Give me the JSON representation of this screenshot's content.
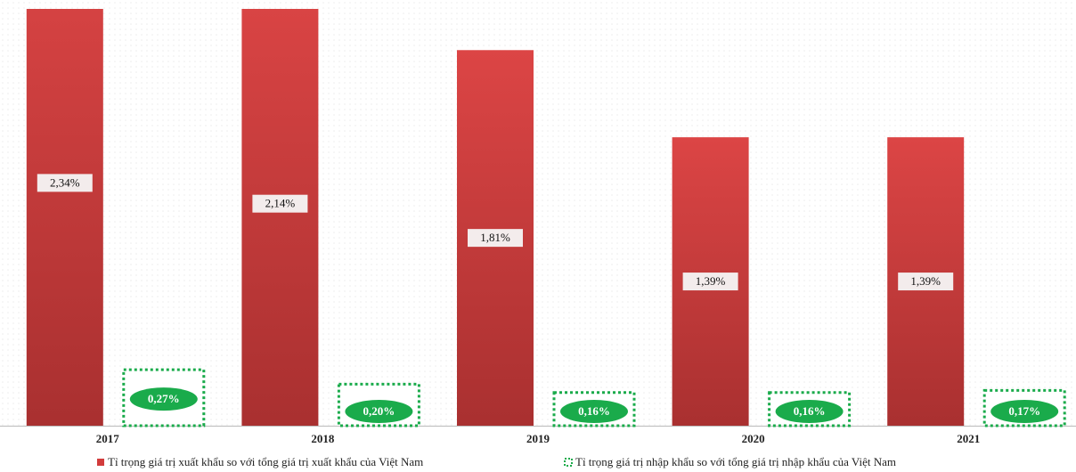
{
  "chart_data": {
    "type": "bar",
    "categories": [
      "2017",
      "2018",
      "2019",
      "2020",
      "2021"
    ],
    "series": [
      {
        "name": "Tỉ trọng giá trị xuất khẩu so với tổng giá trị xuất khẩu của Việt Nam",
        "color": "#d23c3c",
        "values": [
          2.34,
          2.14,
          1.81,
          1.39,
          1.39
        ],
        "value_labels": [
          "2,34%",
          "2,14%",
          "1,81%",
          "1,39%",
          "1,39%"
        ]
      },
      {
        "name": "Tỉ trọng giá trị nhập khẩu so với tổng giá trị nhập khẩu của Việt Nam",
        "color": "#1aab4b",
        "values": [
          0.27,
          0.2,
          0.16,
          0.16,
          0.17
        ],
        "value_labels": [
          "0,27%",
          "0,20%",
          "0,16%",
          "0,16%",
          "0,17%"
        ]
      }
    ]
  }
}
